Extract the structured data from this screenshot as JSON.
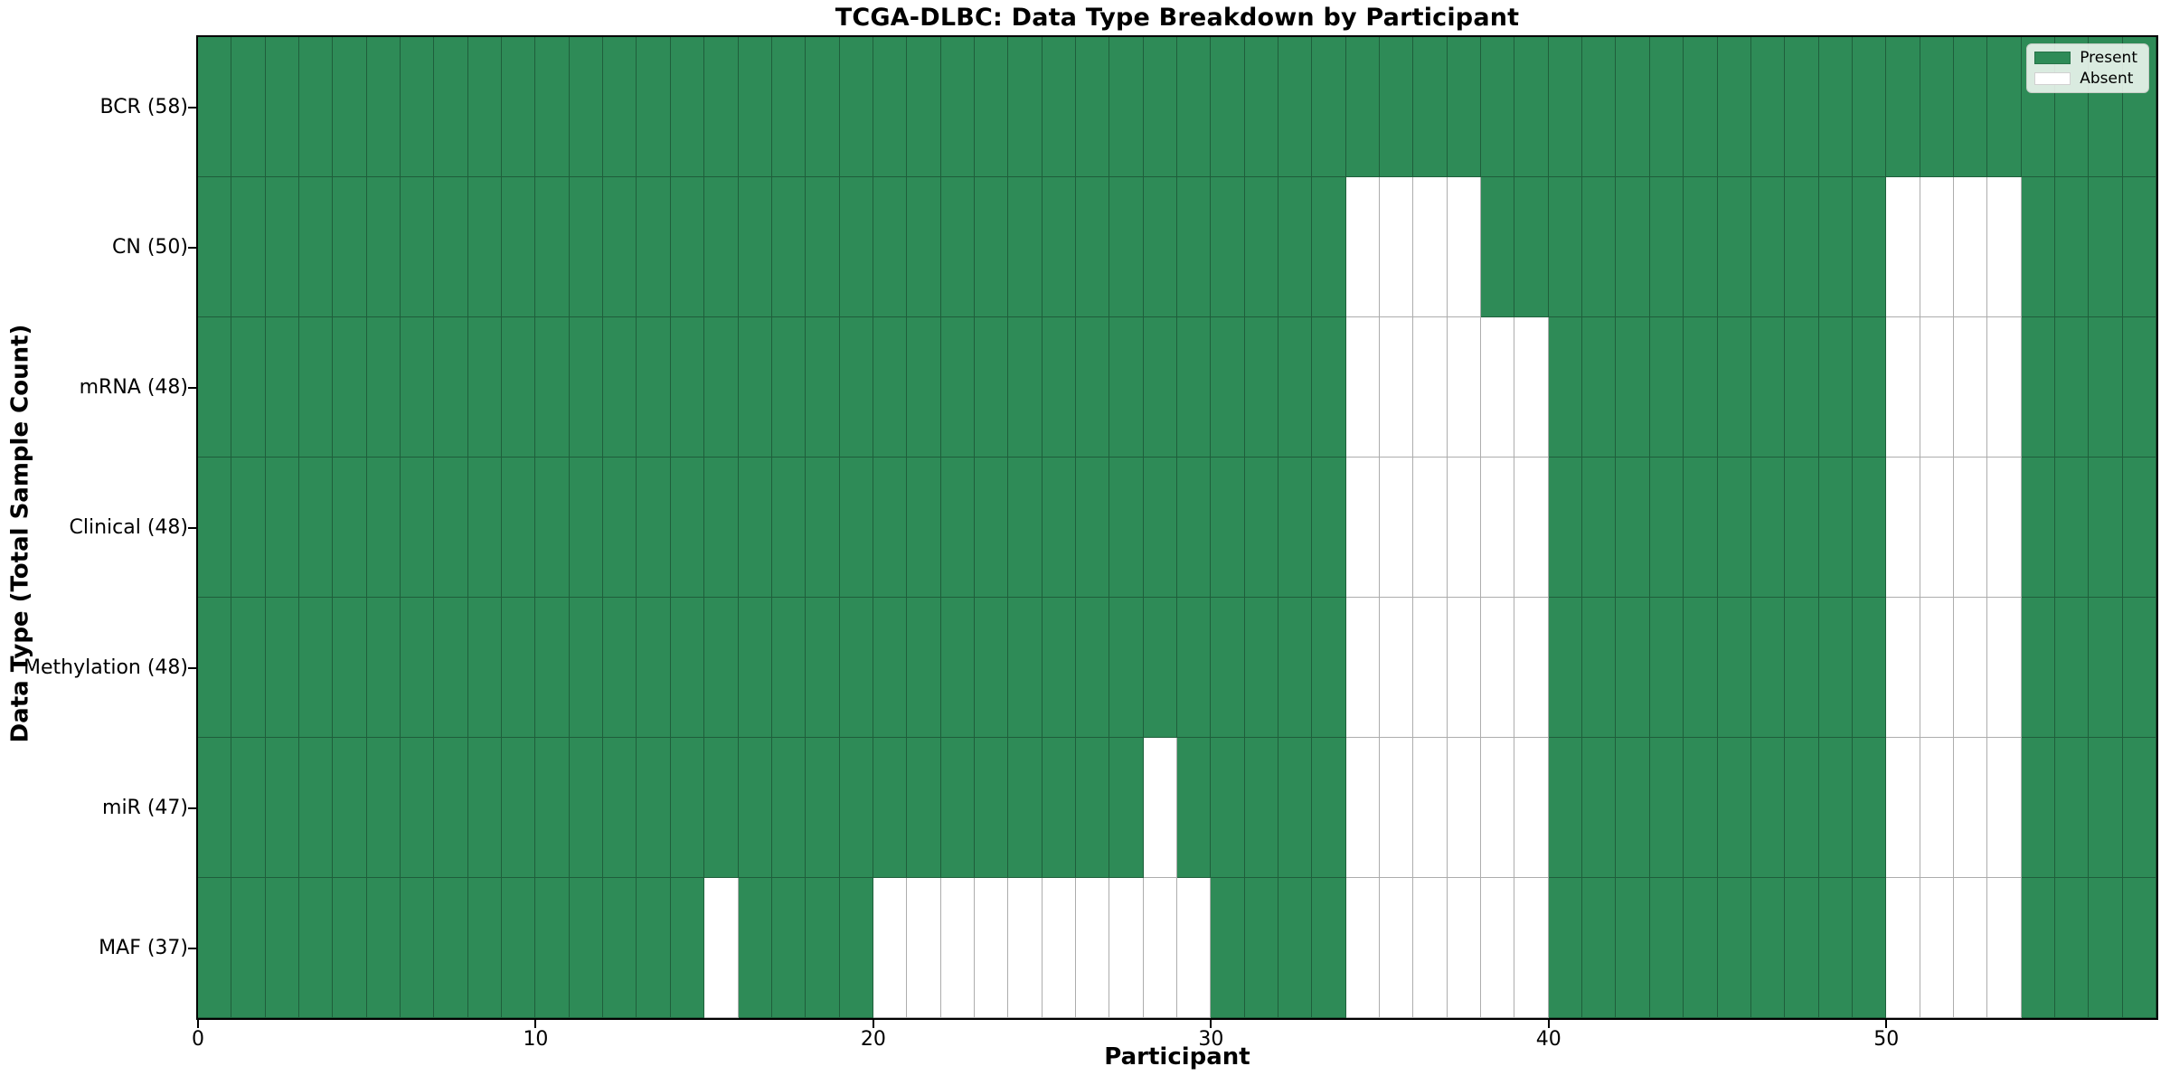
{
  "chart_data": {
    "type": "heatmap",
    "title": "TCGA-DLBC: Data Type Breakdown by Participant",
    "xlabel": "Participant",
    "ylabel": "Data Type (Total Sample Count)",
    "xlim": [
      0,
      58
    ],
    "n_participants": 58,
    "x_ticks": [
      0,
      10,
      20,
      30,
      40,
      50
    ],
    "grid": "cell-edges",
    "legend_position": "upper right",
    "rows": [
      {
        "label": "BCR (58)",
        "data_type": "BCR",
        "present_count": 58,
        "absent_participants": []
      },
      {
        "label": "CN (50)",
        "data_type": "CN",
        "present_count": 50,
        "absent_participants": [
          34,
          35,
          36,
          37,
          50,
          51,
          52,
          53
        ]
      },
      {
        "label": "mRNA (48)",
        "data_type": "mRNA",
        "present_count": 48,
        "absent_participants": [
          34,
          35,
          36,
          37,
          38,
          39,
          50,
          51,
          52,
          53
        ]
      },
      {
        "label": "Clinical (48)",
        "data_type": "Clinical",
        "present_count": 48,
        "absent_participants": [
          34,
          35,
          36,
          37,
          38,
          39,
          50,
          51,
          52,
          53
        ]
      },
      {
        "label": "Methylation (48)",
        "data_type": "Methylation",
        "present_count": 48,
        "absent_participants": [
          34,
          35,
          36,
          37,
          38,
          39,
          50,
          51,
          52,
          53
        ]
      },
      {
        "label": "miR (47)",
        "data_type": "miR",
        "present_count": 47,
        "absent_participants": [
          28,
          34,
          35,
          36,
          37,
          38,
          39,
          50,
          51,
          52,
          53
        ]
      },
      {
        "label": "MAF (37)",
        "data_type": "MAF",
        "present_count": 37,
        "absent_participants": [
          15,
          20,
          21,
          22,
          23,
          24,
          25,
          26,
          27,
          28,
          29,
          34,
          35,
          36,
          37,
          38,
          39,
          50,
          51,
          52,
          53
        ]
      }
    ],
    "legend": [
      {
        "label": "Present",
        "color": "#2e8b57"
      },
      {
        "label": "Absent",
        "color": "#ffffff"
      }
    ],
    "colors": {
      "present": "#2e8b57",
      "absent": "#ffffff",
      "cell_edge": "rgba(0,0,0,0.32)",
      "spine": "#000000"
    }
  }
}
